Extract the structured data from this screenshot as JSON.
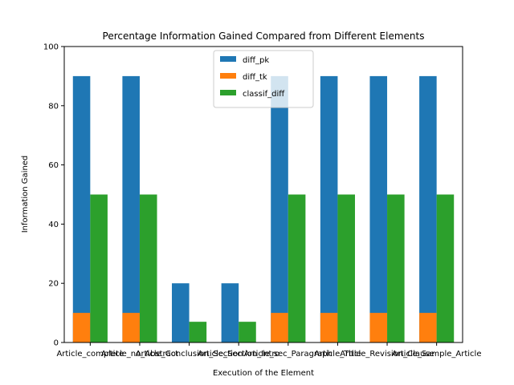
{
  "chart_data": {
    "type": "bar",
    "title": "Percentage Information Gained Compared from Different Elements",
    "xlabel": "Execution of the Element",
    "ylabel": "Information Gained",
    "ylim": [
      0,
      100
    ],
    "yticks": [
      0,
      20,
      40,
      60,
      80,
      100
    ],
    "categories": [
      "Article_complete",
      "Article_no_Abstract",
      "Article_Conclusion_Section",
      "Article_Section_Intro",
      "Article_sec_Paragraph",
      "Article_Title",
      "Article_Revision_Clause",
      "Article_Sample_Article"
    ],
    "series": [
      {
        "name": "diff_pk",
        "color": "#1f77b4",
        "values": [
          90,
          90,
          20,
          20,
          90,
          90,
          90,
          90
        ]
      },
      {
        "name": "diff_tk",
        "color": "#ff7f0e",
        "values": [
          10,
          10,
          0,
          0,
          10,
          10,
          10,
          10
        ]
      },
      {
        "name": "classif_diff",
        "color": "#2ca02c",
        "values": [
          50,
          50,
          7,
          7,
          50,
          50,
          50,
          50
        ]
      }
    ],
    "legend_position": "top-center",
    "grid": false
  }
}
